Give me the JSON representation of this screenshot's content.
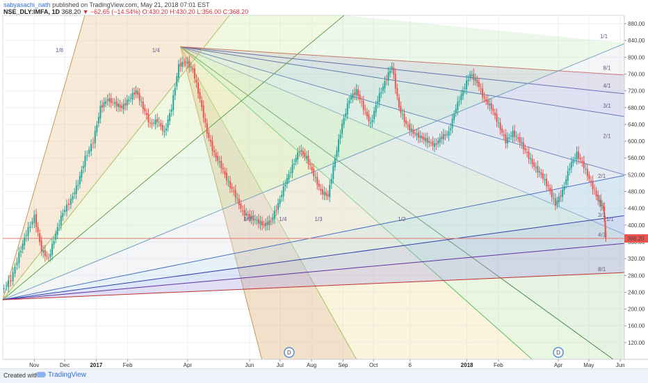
{
  "header": {
    "user": "sabyasachi_nath",
    "published": "published on TradingView.com, May 21, 2018 07:01 EST",
    "symbol": "NSE_DLY:IMFA, 1D",
    "last": "368.20",
    "change": "▼ −62.65 (−14.54%)",
    "ohlc": "O:430.20 H:430.20 L:356.00 C:368.20"
  },
  "footer": {
    "created": "Created with",
    "brand": "TradingView"
  },
  "colors": {
    "up": "#26a69a",
    "down": "#ef5350",
    "price_line": "#e57373",
    "price_tag": "#ef5350",
    "event_badge": "#5b8fd6"
  },
  "chart_data": {
    "type": "candlestick",
    "y_axis_side": "right",
    "ylim": [
      80,
      900
    ],
    "y_ticks": [
      120,
      160,
      200,
      240,
      280,
      320,
      360,
      400,
      440,
      480,
      520,
      560,
      600,
      640,
      680,
      720,
      760,
      800,
      840,
      880
    ],
    "y_tick_labels": [
      "120.00",
      "160.00",
      "200.00",
      "240.00",
      "280.00",
      "320.00",
      "360.00",
      "400.00",
      "440.00",
      "480.00",
      "520.00",
      "560.00",
      "600.00",
      "640.00",
      "680.00",
      "720.00",
      "760.00",
      "800.00",
      "840.00",
      "880.00"
    ],
    "x_range": [
      "2016-10-01",
      "2018-06-05"
    ],
    "x_ticks": [
      {
        "label": "Nov",
        "date": "2016-11-01",
        "bold": false
      },
      {
        "label": "Dec",
        "date": "2016-12-01",
        "bold": false
      },
      {
        "label": "2017",
        "date": "2017-01-01",
        "bold": true
      },
      {
        "label": "Feb",
        "date": "2017-02-01",
        "bold": false
      },
      {
        "label": "Apr",
        "date": "2017-04-01",
        "bold": false
      },
      {
        "label": "Jun",
        "date": "2017-06-01",
        "bold": false
      },
      {
        "label": "Jul",
        "date": "2017-07-01",
        "bold": false
      },
      {
        "label": "Aug",
        "date": "2017-08-01",
        "bold": false
      },
      {
        "label": "Sep",
        "date": "2017-09-01",
        "bold": false
      },
      {
        "label": "Oct",
        "date": "2017-10-01",
        "bold": false
      },
      {
        "label": "6",
        "date": "2017-11-06",
        "bold": false
      },
      {
        "label": "2018",
        "date": "2018-01-01",
        "bold": true
      },
      {
        "label": "Feb",
        "date": "2018-02-01",
        "bold": false
      },
      {
        "label": "Apr",
        "date": "2018-04-01",
        "bold": false
      },
      {
        "label": "May",
        "date": "2018-05-01",
        "bold": false
      },
      {
        "label": "Jun",
        "date": "2018-06-01",
        "bold": false
      }
    ],
    "last_price": 368.2,
    "last_price_label": "368.20",
    "price_path": [
      [
        "2016-10-01",
        245
      ],
      [
        "2016-10-10",
        270
      ],
      [
        "2016-10-18",
        330
      ],
      [
        "2016-10-25",
        380
      ],
      [
        "2016-11-02",
        420
      ],
      [
        "2016-11-09",
        340
      ],
      [
        "2016-11-16",
        320
      ],
      [
        "2016-11-23",
        380
      ],
      [
        "2016-11-30",
        430
      ],
      [
        "2016-12-08",
        460
      ],
      [
        "2016-12-15",
        500
      ],
      [
        "2016-12-22",
        560
      ],
      [
        "2016-12-30",
        600
      ],
      [
        "2017-01-06",
        680
      ],
      [
        "2017-01-13",
        700
      ],
      [
        "2017-01-20",
        690
      ],
      [
        "2017-01-27",
        680
      ],
      [
        "2017-02-03",
        700
      ],
      [
        "2017-02-10",
        720
      ],
      [
        "2017-02-17",
        680
      ],
      [
        "2017-02-24",
        640
      ],
      [
        "2017-03-03",
        650
      ],
      [
        "2017-03-10",
        620
      ],
      [
        "2017-03-17",
        680
      ],
      [
        "2017-03-24",
        780
      ],
      [
        "2017-03-31",
        790
      ],
      [
        "2017-04-07",
        770
      ],
      [
        "2017-04-14",
        700
      ],
      [
        "2017-04-21",
        620
      ],
      [
        "2017-04-28",
        570
      ],
      [
        "2017-05-05",
        540
      ],
      [
        "2017-05-12",
        500
      ],
      [
        "2017-05-19",
        470
      ],
      [
        "2017-05-26",
        430
      ],
      [
        "2017-06-02",
        420
      ],
      [
        "2017-06-09",
        410
      ],
      [
        "2017-06-16",
        400
      ],
      [
        "2017-06-23",
        410
      ],
      [
        "2017-06-30",
        450
      ],
      [
        "2017-07-07",
        500
      ],
      [
        "2017-07-14",
        540
      ],
      [
        "2017-07-21",
        580
      ],
      [
        "2017-07-28",
        560
      ],
      [
        "2017-08-04",
        520
      ],
      [
        "2017-08-11",
        480
      ],
      [
        "2017-08-18",
        470
      ],
      [
        "2017-08-25",
        560
      ],
      [
        "2017-09-01",
        640
      ],
      [
        "2017-09-08",
        700
      ],
      [
        "2017-09-15",
        720
      ],
      [
        "2017-09-22",
        680
      ],
      [
        "2017-09-29",
        640
      ],
      [
        "2017-10-06",
        700
      ],
      [
        "2017-10-13",
        740
      ],
      [
        "2017-10-20",
        780
      ],
      [
        "2017-10-27",
        680
      ],
      [
        "2017-11-03",
        640
      ],
      [
        "2017-11-10",
        620
      ],
      [
        "2017-11-17",
        610
      ],
      [
        "2017-11-24",
        600
      ],
      [
        "2017-12-01",
        590
      ],
      [
        "2017-12-08",
        610
      ],
      [
        "2017-12-15",
        620
      ],
      [
        "2017-12-22",
        680
      ],
      [
        "2017-12-29",
        720
      ],
      [
        "2018-01-05",
        760
      ],
      [
        "2018-01-12",
        740
      ],
      [
        "2018-01-19",
        700
      ],
      [
        "2018-01-26",
        680
      ],
      [
        "2018-02-02",
        640
      ],
      [
        "2018-02-09",
        600
      ],
      [
        "2018-02-16",
        620
      ],
      [
        "2018-02-23",
        600
      ],
      [
        "2018-03-02",
        570
      ],
      [
        "2018-03-09",
        540
      ],
      [
        "2018-03-16",
        520
      ],
      [
        "2018-03-23",
        490
      ],
      [
        "2018-03-30",
        450
      ],
      [
        "2018-04-06",
        480
      ],
      [
        "2018-04-13",
        540
      ],
      [
        "2018-04-20",
        570
      ],
      [
        "2018-04-27",
        540
      ],
      [
        "2018-05-04",
        500
      ],
      [
        "2018-05-11",
        460
      ],
      [
        "2018-05-16",
        440
      ],
      [
        "2018-05-18",
        368.2
      ]
    ],
    "event_badges": [
      {
        "label": "D",
        "date": "2017-07-10"
      },
      {
        "label": "D",
        "date": "2018-04-01"
      }
    ],
    "gann_fan_top": {
      "origin": [
        "2017-03-25",
        825
      ],
      "lines": [
        {
          "label": "1/8",
          "dir": [
            -12.5,
            60
          ],
          "color": "#c89a5a"
        },
        {
          "label": "1/4",
          "dir": [
            -3.2,
            55
          ],
          "color": "#a8c060"
        },
        {
          "label": "1/3",
          "dir": [
            13.9,
            62
          ],
          "color": "#5cc05c"
        },
        {
          "label": "1/2",
          "dir": [
            43,
            79
          ],
          "color": "#4a8a4a"
        },
        {
          "label": "1/1",
          "dir": [
            80,
            53
          ],
          "color": "#70a0c0"
        },
        {
          "label": "2/1",
          "dir": [
            80,
            34
          ],
          "color": "#3a60b0"
        },
        {
          "label": "3/1",
          "dir": [
            80,
            22
          ],
          "color": "#2a40a0"
        },
        {
          "label": "4/1",
          "dir": [
            80,
            17
          ],
          "color": "#3030a0"
        },
        {
          "label": "8/1",
          "dir": [
            80,
            8
          ],
          "color": "#c04040"
        }
      ],
      "label_points": [
        [
          "2017-02-14",
          760
        ],
        [
          "2017-03-18",
          760
        ],
        [
          "2017-04-05",
          760
        ],
        [
          "2017-07-20",
          760
        ],
        [
          "2018-05-10",
          745
        ],
        [
          "2018-05-15",
          605
        ],
        [
          "2018-05-15",
          715
        ],
        [
          "2018-05-15",
          735
        ],
        [
          "2018-05-15",
          785
        ]
      ]
    },
    "gann_fan_bottom": {
      "origin": [
        "2016-10-01",
        222
      ],
      "lines": [
        {
          "label": "1/1",
          "dir": [
            80,
            62
          ],
          "color": "#70a0c0"
        },
        {
          "label": "2/1",
          "dir": [
            80,
            40
          ],
          "color": "#4a70c0"
        },
        {
          "label": "3/1",
          "dir": [
            80,
            26
          ],
          "color": "#3040a8"
        },
        {
          "label": "4/1",
          "dir": [
            80,
            18
          ],
          "color": "#6030a0"
        },
        {
          "label": "8/1",
          "dir": [
            80,
            10
          ],
          "color": "#c03030"
        }
      ],
      "top_lines": [
        {
          "label": "",
          "dir": [
            120,
            900
          ],
          "color": "#c89a5a"
        },
        {
          "label": "",
          "dir": [
            200,
            900
          ],
          "color": "#a8c060"
        },
        {
          "label": "",
          "dir": [
            490,
            900
          ],
          "color": "#60a050"
        }
      ],
      "label_points": [
        [
          "2018-05-15",
          419
        ],
        [
          "2018-05-15",
          380
        ],
        [
          "2018-05-10",
          500
        ],
        [
          "2018-05-10",
          300
        ],
        [
          "2017-10-20",
          410
        ]
      ]
    },
    "extra_labels": [
      {
        "label": "1/8",
        "date": "2016-11-22",
        "price": 812
      },
      {
        "label": "1/4",
        "date": "2017-02-25",
        "price": 812
      },
      {
        "label": "1/8",
        "date": "2017-05-26",
        "price": 410
      },
      {
        "label": "1/4",
        "date": "2017-06-30",
        "price": 410
      },
      {
        "label": "1/3",
        "date": "2017-08-04",
        "price": 410
      },
      {
        "label": "1/2",
        "date": "2017-10-25",
        "price": 410
      },
      {
        "label": "1/1",
        "date": "2018-05-18",
        "price": 410
      },
      {
        "label": "1/1",
        "date": "2018-05-12",
        "price": 845
      },
      {
        "label": "8/1",
        "date": "2018-05-15",
        "price": 770
      },
      {
        "label": "4/1",
        "date": "2018-05-15",
        "price": 728
      },
      {
        "label": "3/1",
        "date": "2018-05-15",
        "price": 680
      },
      {
        "label": "2/1",
        "date": "2018-05-15",
        "price": 608
      },
      {
        "label": "2/1",
        "date": "2018-05-10",
        "price": 512
      },
      {
        "label": "3/1",
        "date": "2018-05-10",
        "price": 420
      },
      {
        "label": "4/1",
        "date": "2018-05-10",
        "price": 372
      },
      {
        "label": "8/1",
        "date": "2018-05-10",
        "price": 290
      }
    ]
  }
}
